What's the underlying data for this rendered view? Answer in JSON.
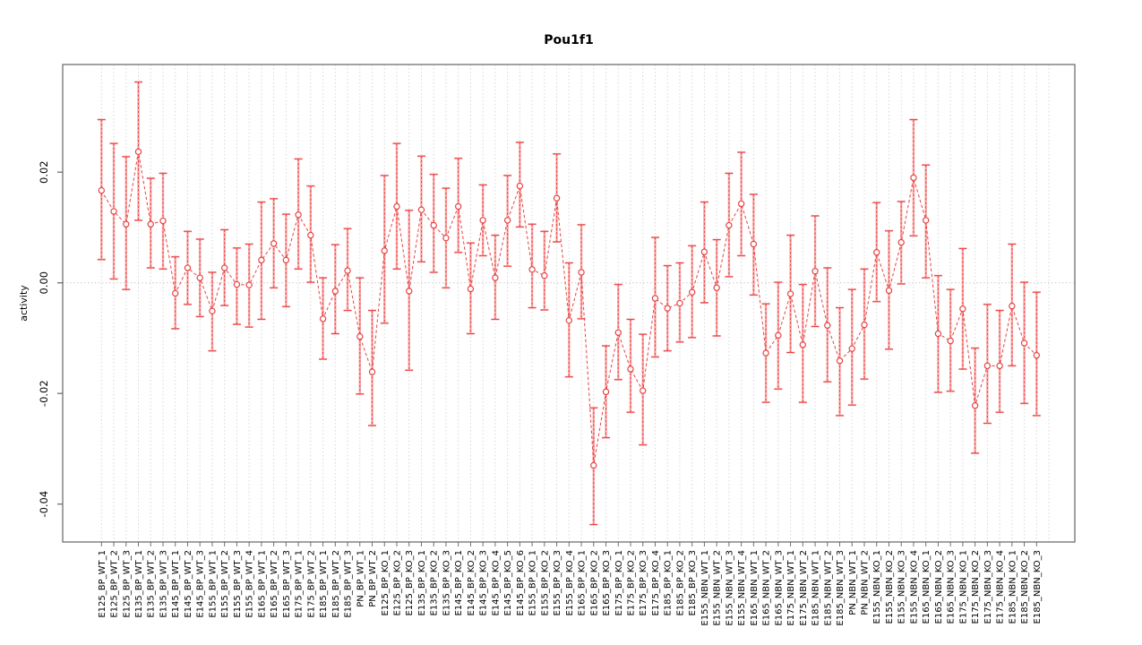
{
  "title": "Pou1f1",
  "colors": {
    "accent_red": "#e84343",
    "bar_pink": "#f9a8a8",
    "grid_dotted": "#d8d8d8",
    "zero_line": "#c9c9c9",
    "box_border": "#707070",
    "tick_text": "#000000"
  },
  "chart_data": {
    "type": "scatter",
    "title": "Pou1f1",
    "xlabel": "",
    "ylabel": "activity",
    "ylim": [
      -0.047,
      0.0395
    ],
    "yticks": [
      0.02,
      0.0,
      -0.02,
      -0.04
    ],
    "ytick_labels": [
      "0.02",
      "0.00",
      "-0.02",
      "-0.04"
    ],
    "grid": "vertical dotted line at each x position; horizontal dotted line at y=0",
    "legend_position": "none",
    "marker": "open-circle with error bars, points connected by dashed red line",
    "points": [
      {
        "label": "E125_BP_WT_1",
        "value": 0.0167,
        "lower": 0.0042,
        "upper": 0.0295
      },
      {
        "label": "E125_BP_WT_2",
        "value": 0.0129,
        "lower": 0.0007,
        "upper": 0.0252
      },
      {
        "label": "E125_BP_WT_3",
        "value": 0.0106,
        "lower": -0.0012,
        "upper": 0.0228
      },
      {
        "label": "E135_BP_WT_1",
        "value": 0.0237,
        "lower": 0.0113,
        "upper": 0.0363
      },
      {
        "label": "E135_BP_WT_2",
        "value": 0.0106,
        "lower": 0.0027,
        "upper": 0.0189
      },
      {
        "label": "E135_BP_WT_3",
        "value": 0.0112,
        "lower": 0.0025,
        "upper": 0.0198
      },
      {
        "label": "E145_BP_WT_1",
        "value": -0.0019,
        "lower": -0.0083,
        "upper": 0.0047
      },
      {
        "label": "E145_BP_WT_2",
        "value": 0.0027,
        "lower": -0.0039,
        "upper": 0.0093
      },
      {
        "label": "E145_BP_WT_3",
        "value": 0.0009,
        "lower": -0.0061,
        "upper": 0.0079
      },
      {
        "label": "E155_BP_WT_1",
        "value": -0.0051,
        "lower": -0.0123,
        "upper": 0.0019
      },
      {
        "label": "E155_BP_WT_2",
        "value": 0.0027,
        "lower": -0.0041,
        "upper": 0.0096
      },
      {
        "label": "E155_BP_WT_3",
        "value": -0.0003,
        "lower": -0.0075,
        "upper": 0.0063
      },
      {
        "label": "E155_BP_WT_4",
        "value": -0.0004,
        "lower": -0.008,
        "upper": 0.007
      },
      {
        "label": "E165_BP_WT_1",
        "value": 0.0041,
        "lower": -0.0066,
        "upper": 0.0146
      },
      {
        "label": "E165_BP_WT_2",
        "value": 0.0071,
        "lower": -0.0009,
        "upper": 0.0152
      },
      {
        "label": "E165_BP_WT_3",
        "value": 0.0041,
        "lower": -0.0043,
        "upper": 0.0124
      },
      {
        "label": "E175_BP_WT_1",
        "value": 0.0123,
        "lower": 0.0025,
        "upper": 0.0224
      },
      {
        "label": "E175_BP_WT_2",
        "value": 0.0086,
        "lower": 0.0001,
        "upper": 0.0175
      },
      {
        "label": "E185_BP_WT_1",
        "value": -0.0065,
        "lower": -0.0138,
        "upper": 0.0009
      },
      {
        "label": "E185_BP_WT_2",
        "value": -0.0015,
        "lower": -0.0092,
        "upper": 0.0069
      },
      {
        "label": "E185_BP_WT_3",
        "value": 0.0022,
        "lower": -0.005,
        "upper": 0.0098
      },
      {
        "label": "PN_BP_WT_1",
        "value": -0.0097,
        "lower": -0.0201,
        "upper": 0.0009
      },
      {
        "label": "PN_BP_WT_2",
        "value": -0.0161,
        "lower": -0.0258,
        "upper": -0.005
      },
      {
        "label": "E125_BP_KO_1",
        "value": 0.0058,
        "lower": -0.0073,
        "upper": 0.0194
      },
      {
        "label": "E125_BP_KO_2",
        "value": 0.0138,
        "lower": 0.0025,
        "upper": 0.0252
      },
      {
        "label": "E125_BP_KO_3",
        "value": -0.0015,
        "lower": -0.0158,
        "upper": 0.0131
      },
      {
        "label": "E135_BP_KO_1",
        "value": 0.0132,
        "lower": 0.0038,
        "upper": 0.0229
      },
      {
        "label": "E135_BP_KO_2",
        "value": 0.0104,
        "lower": 0.0019,
        "upper": 0.0196
      },
      {
        "label": "E135_BP_KO_3",
        "value": 0.0081,
        "lower": -0.0009,
        "upper": 0.0171
      },
      {
        "label": "E145_BP_KO_1",
        "value": 0.0138,
        "lower": 0.0055,
        "upper": 0.0225
      },
      {
        "label": "E145_BP_KO_2",
        "value": -0.0011,
        "lower": -0.0092,
        "upper": 0.0072
      },
      {
        "label": "E145_BP_KO_3",
        "value": 0.0113,
        "lower": 0.0049,
        "upper": 0.0177
      },
      {
        "label": "E145_BP_KO_4",
        "value": 0.0009,
        "lower": -0.0066,
        "upper": 0.0086
      },
      {
        "label": "E145_BP_KO_5",
        "value": 0.0113,
        "lower": 0.003,
        "upper": 0.0194
      },
      {
        "label": "E145_BP_KO_6",
        "value": 0.0175,
        "lower": 0.0101,
        "upper": 0.0254
      },
      {
        "label": "E155_BP_KO_1",
        "value": 0.0024,
        "lower": -0.0045,
        "upper": 0.0106
      },
      {
        "label": "E155_BP_KO_2",
        "value": 0.0013,
        "lower": -0.0049,
        "upper": 0.0093
      },
      {
        "label": "E155_BP_KO_3",
        "value": 0.0153,
        "lower": 0.0074,
        "upper": 0.0233
      },
      {
        "label": "E155_BP_KO_4",
        "value": -0.0068,
        "lower": -0.017,
        "upper": 0.0036
      },
      {
        "label": "E165_BP_KO_1",
        "value": 0.0019,
        "lower": -0.0065,
        "upper": 0.0105
      },
      {
        "label": "E165_BP_KO_2",
        "value": -0.033,
        "lower": -0.0437,
        "upper": -0.0226
      },
      {
        "label": "E165_BP_KO_3",
        "value": -0.0197,
        "lower": -0.028,
        "upper": -0.0114
      },
      {
        "label": "E175_BP_KO_1",
        "value": -0.009,
        "lower": -0.0175,
        "upper": -0.0003
      },
      {
        "label": "E175_BP_KO_2",
        "value": -0.0156,
        "lower": -0.0234,
        "upper": -0.0066
      },
      {
        "label": "E175_BP_KO_3",
        "value": -0.0195,
        "lower": -0.0293,
        "upper": -0.0093
      },
      {
        "label": "E175_BP_KO_4",
        "value": -0.0028,
        "lower": -0.0134,
        "upper": 0.0082
      },
      {
        "label": "E185_BP_KO_1",
        "value": -0.0046,
        "lower": -0.0123,
        "upper": 0.0031
      },
      {
        "label": "E185_BP_KO_2",
        "value": -0.0037,
        "lower": -0.0107,
        "upper": 0.0036
      },
      {
        "label": "E185_BP_KO_3",
        "value": -0.0017,
        "lower": -0.0099,
        "upper": 0.0067
      },
      {
        "label": "E155_NBN_WT_1",
        "value": 0.0056,
        "lower": -0.0036,
        "upper": 0.0146
      },
      {
        "label": "E155_NBN_WT_2",
        "value": -0.0009,
        "lower": -0.0096,
        "upper": 0.0078
      },
      {
        "label": "E155_NBN_WT_3",
        "value": 0.0104,
        "lower": 0.0011,
        "upper": 0.0198
      },
      {
        "label": "E155_NBN_WT_4",
        "value": 0.0143,
        "lower": 0.0049,
        "upper": 0.0236
      },
      {
        "label": "E165_NBN_WT_1",
        "value": 0.007,
        "lower": -0.0022,
        "upper": 0.016
      },
      {
        "label": "E165_NBN_WT_2",
        "value": -0.0127,
        "lower": -0.0216,
        "upper": -0.0038
      },
      {
        "label": "E165_NBN_WT_3",
        "value": -0.0095,
        "lower": -0.0192,
        "upper": 0.0001
      },
      {
        "label": "E175_NBN_WT_1",
        "value": -0.002,
        "lower": -0.0126,
        "upper": 0.0086
      },
      {
        "label": "E175_NBN_WT_2",
        "value": -0.0112,
        "lower": -0.0216,
        "upper": -0.0003
      },
      {
        "label": "E185_NBN_WT_1",
        "value": 0.0021,
        "lower": -0.0079,
        "upper": 0.0121
      },
      {
        "label": "E185_NBN_WT_2",
        "value": -0.0077,
        "lower": -0.0179,
        "upper": 0.0027
      },
      {
        "label": "E185_NBN_WT_3",
        "value": -0.0141,
        "lower": -0.024,
        "upper": -0.0045
      },
      {
        "label": "PN_NBN_WT_1",
        "value": -0.0119,
        "lower": -0.0221,
        "upper": -0.0012
      },
      {
        "label": "PN_NBN_WT_2",
        "value": -0.0076,
        "lower": -0.0174,
        "upper": 0.0025
      },
      {
        "label": "E155_NBN_KO_1",
        "value": 0.0055,
        "lower": -0.0034,
        "upper": 0.0145
      },
      {
        "label": "E155_NBN_KO_2",
        "value": -0.0014,
        "lower": -0.012,
        "upper": 0.0094
      },
      {
        "label": "E155_NBN_KO_3",
        "value": 0.0073,
        "lower": -0.0002,
        "upper": 0.0147
      },
      {
        "label": "E155_NBN_KO_4",
        "value": 0.019,
        "lower": 0.0085,
        "upper": 0.0295
      },
      {
        "label": "E165_NBN_KO_1",
        "value": 0.0113,
        "lower": 0.0009,
        "upper": 0.0213
      },
      {
        "label": "E165_NBN_KO_2",
        "value": -0.0092,
        "lower": -0.0198,
        "upper": 0.0013
      },
      {
        "label": "E165_NBN_KO_3",
        "value": -0.0105,
        "lower": -0.0196,
        "upper": -0.0012
      },
      {
        "label": "E175_NBN_KO_1",
        "value": -0.0047,
        "lower": -0.0156,
        "upper": 0.0062
      },
      {
        "label": "E175_NBN_KO_2",
        "value": -0.0222,
        "lower": -0.0308,
        "upper": -0.0118
      },
      {
        "label": "E175_NBN_KO_3",
        "value": -0.015,
        "lower": -0.0254,
        "upper": -0.0039
      },
      {
        "label": "E175_NBN_KO_4",
        "value": -0.015,
        "lower": -0.0234,
        "upper": -0.005
      },
      {
        "label": "E185_NBN_KO_1",
        "value": -0.0042,
        "lower": -0.015,
        "upper": 0.007
      },
      {
        "label": "E185_NBN_KO_2",
        "value": -0.0109,
        "lower": -0.0218,
        "upper": 0.0001
      },
      {
        "label": "E185_NBN_KO_3",
        "value": -0.0131,
        "lower": -0.024,
        "upper": -0.0017
      }
    ]
  }
}
